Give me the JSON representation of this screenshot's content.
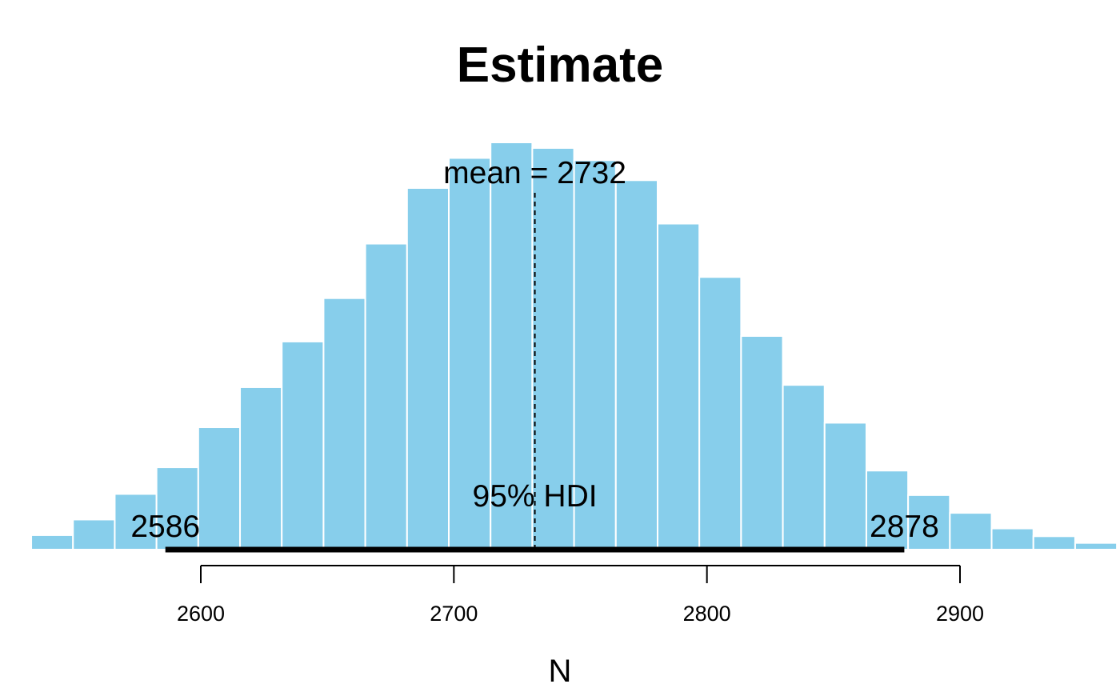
{
  "chart_data": {
    "type": "bar",
    "title": "Estimate",
    "xlabel": "N",
    "ylabel": "",
    "xlim": [
      2533,
      2950
    ],
    "bin_width": 16.5,
    "bin_start": 2533,
    "values": [
      13,
      27,
      50,
      74,
      110,
      146,
      187,
      226,
      275,
      325,
      352,
      366,
      361,
      350,
      332,
      293,
      245,
      192,
      148,
      114,
      71,
      49,
      33,
      19,
      12,
      6
    ],
    "xticks": [
      2600,
      2700,
      2800,
      2900
    ],
    "bar_color": "#87ceeb",
    "grid": false,
    "legend": "none",
    "mean": {
      "value": 2732,
      "label": "mean = 2732"
    },
    "hdi": {
      "label": "95% HDI",
      "low": 2586,
      "high": 2878,
      "low_label": "2586",
      "high_label": "2878"
    }
  }
}
